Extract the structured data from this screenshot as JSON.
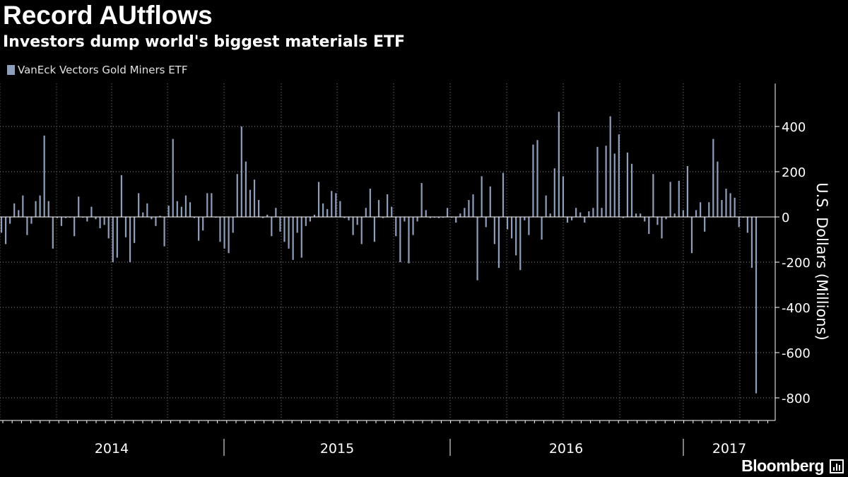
{
  "header": {
    "title": "Record AUtflows",
    "subtitle": "Investors dump world's biggest materials ETF"
  },
  "brand": {
    "name": "Bloomberg",
    "icon": "bloomberg-terminal-icon"
  },
  "colors": {
    "background": "#000000",
    "bar": "#8f9ebb",
    "grid": "#8a8a8a",
    "text": "#ffffff"
  },
  "chart_data": {
    "type": "bar",
    "title": "Record AUtflows",
    "subtitle": "Investors dump world's biggest materials ETF",
    "ylabel": "U.S. Dollars (Millions)",
    "xlabel": "",
    "ylim": [
      -900,
      590
    ],
    "yticks": [
      400,
      200,
      0,
      -200,
      -400,
      -600,
      -800
    ],
    "ytick_labels": [
      "400",
      "200",
      "0",
      "-200",
      "-400",
      "-600",
      "-800"
    ],
    "year_labels": [
      "2014",
      "2015",
      "2016",
      "2017"
    ],
    "grid": true,
    "legend_position": "top-left",
    "series": [
      {
        "name": "VanEck Vectors Gold Miners ETF",
        "color": "#8f9ebb",
        "values": [
          -70,
          -120,
          -30,
          60,
          30,
          95,
          -80,
          -30,
          70,
          95,
          360,
          70,
          -140,
          -5,
          -40,
          -5,
          0,
          -85,
          90,
          0,
          -20,
          45,
          -10,
          -50,
          -35,
          -95,
          -200,
          -180,
          185,
          -90,
          -200,
          -115,
          105,
          20,
          60,
          -10,
          -40,
          5,
          -130,
          50,
          345,
          70,
          45,
          95,
          65,
          -5,
          -105,
          -60,
          105,
          105,
          0,
          -110,
          -140,
          -160,
          -70,
          190,
          400,
          245,
          120,
          165,
          75,
          -5,
          10,
          -85,
          40,
          -65,
          -110,
          -140,
          -190,
          -70,
          -180,
          -40,
          -20,
          10,
          155,
          60,
          35,
          115,
          105,
          70,
          -5,
          -15,
          -80,
          -35,
          -120,
          40,
          125,
          -110,
          75,
          -5,
          100,
          45,
          -85,
          -200,
          -20,
          -205,
          -80,
          -20,
          150,
          30,
          -5,
          0,
          -5,
          0,
          40,
          0,
          -25,
          15,
          40,
          75,
          100,
          -280,
          180,
          -45,
          135,
          -120,
          -225,
          195,
          -55,
          -95,
          -170,
          -235,
          -15,
          -80,
          320,
          340,
          -100,
          95,
          15,
          215,
          465,
          180,
          -25,
          -15,
          40,
          20,
          -25,
          25,
          40,
          310,
          40,
          315,
          445,
          280,
          365,
          -5,
          285,
          235,
          15,
          15,
          -20,
          -75,
          190,
          -35,
          -95,
          -10,
          155,
          15,
          160,
          30,
          225,
          -160,
          30,
          65,
          -65,
          65,
          345,
          245,
          75,
          125,
          105,
          85,
          -45,
          0,
          -70,
          -225,
          -780
        ]
      }
    ]
  }
}
